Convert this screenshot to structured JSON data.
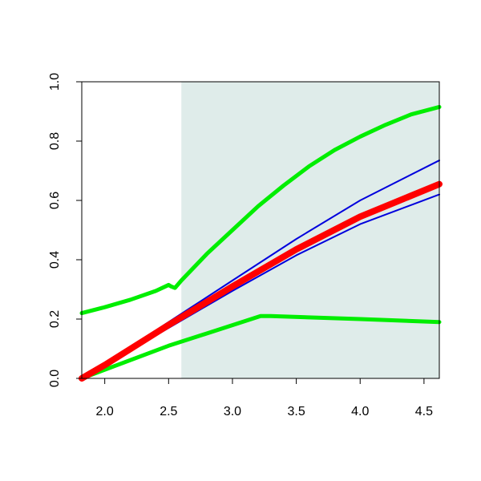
{
  "chart_data": {
    "type": "line",
    "title": "",
    "xlabel": "",
    "ylabel": "",
    "xlim": [
      1.82,
      4.62
    ],
    "ylim": [
      0.0,
      1.0
    ],
    "xticks": [
      2.0,
      2.5,
      3.0,
      3.5,
      4.0,
      4.5
    ],
    "xtick_labels": [
      "2.0",
      "2.5",
      "3.0",
      "3.5",
      "4.0",
      "4.5"
    ],
    "yticks": [
      0.0,
      0.2,
      0.4,
      0.6,
      0.8,
      1.0
    ],
    "ytick_labels": [
      "0.0",
      "0.2",
      "0.4",
      "0.6",
      "0.8",
      "1.0"
    ],
    "grid": false,
    "legend": "none",
    "shaded_region": {
      "x_start": 2.6,
      "x_end": 4.62,
      "color": "#dfecea"
    },
    "series": [
      {
        "role": "blue-upper",
        "color": "#0000dd",
        "stroke": "thin",
        "x": [
          1.82,
          2.0,
          2.5,
          3.0,
          3.5,
          4.0,
          4.62
        ],
        "y": [
          0.0,
          0.05,
          0.19,
          0.33,
          0.47,
          0.6,
          0.735
        ]
      },
      {
        "role": "blue-lower",
        "color": "#0000dd",
        "stroke": "thin",
        "x": [
          1.82,
          2.0,
          2.5,
          3.0,
          3.5,
          4.0,
          4.62
        ],
        "y": [
          0.0,
          0.045,
          0.17,
          0.295,
          0.415,
          0.52,
          0.62
        ]
      },
      {
        "role": "green-upper",
        "color": "#00ee00",
        "stroke": "thick",
        "x": [
          1.82,
          2.0,
          2.2,
          2.4,
          2.5,
          2.52,
          2.55,
          2.6,
          2.8,
          3.0,
          3.2,
          3.4,
          3.6,
          3.8,
          4.0,
          4.2,
          4.4,
          4.62
        ],
        "y": [
          0.22,
          0.24,
          0.265,
          0.295,
          0.315,
          0.31,
          0.305,
          0.33,
          0.42,
          0.5,
          0.58,
          0.65,
          0.715,
          0.77,
          0.815,
          0.855,
          0.89,
          0.915
        ]
      },
      {
        "role": "green-lower",
        "color": "#00ee00",
        "stroke": "thick",
        "x": [
          1.82,
          2.5,
          3.22,
          3.3,
          4.0,
          4.62
        ],
        "y": [
          0.0,
          0.11,
          0.21,
          0.21,
          0.2,
          0.19
        ]
      },
      {
        "role": "red-center",
        "color": "#ff0000",
        "stroke": "very-thick",
        "x": [
          1.82,
          2.0,
          2.5,
          3.0,
          3.5,
          4.0,
          4.62
        ],
        "y": [
          0.0,
          0.045,
          0.18,
          0.31,
          0.435,
          0.545,
          0.655
        ]
      }
    ]
  }
}
